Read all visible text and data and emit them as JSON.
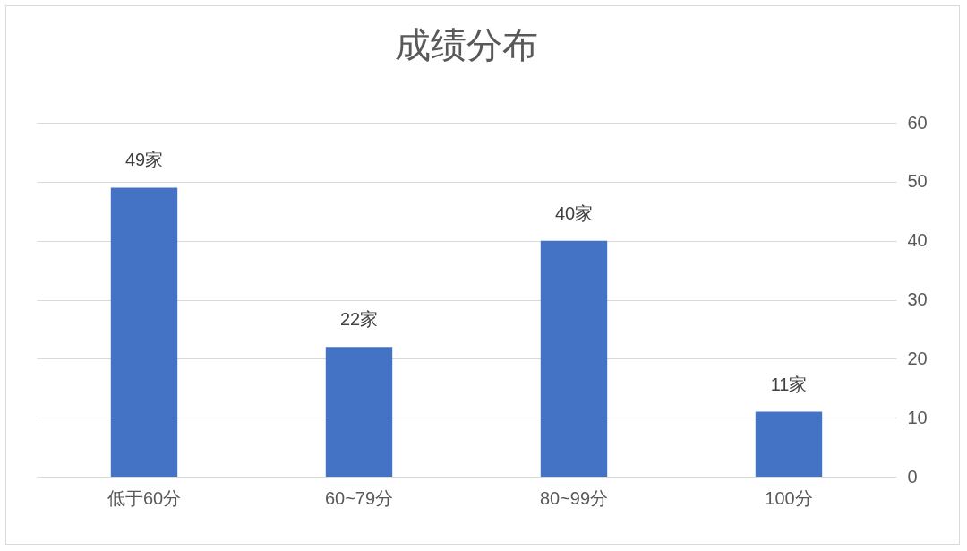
{
  "chart_data": {
    "type": "bar",
    "title": "成绩分布",
    "categories": [
      "低于60分",
      "60~79分",
      "80~99分",
      "100分"
    ],
    "values": [
      49,
      22,
      40,
      11
    ],
    "value_labels": [
      "49家",
      "22家",
      "40家",
      "11家"
    ],
    "color": "#4472c4",
    "ylim": [
      0,
      60
    ],
    "yticks": [
      0,
      10,
      20,
      30,
      40,
      50,
      60
    ],
    "grid": "y"
  }
}
